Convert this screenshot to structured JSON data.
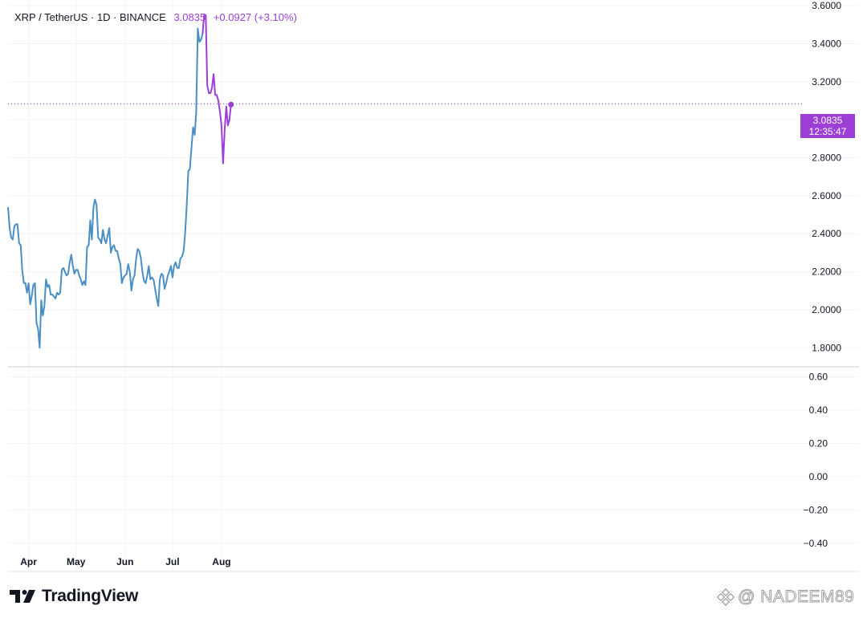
{
  "header": {
    "symbol": "XRP / TetherUS · 1D · BINANCE",
    "price": "3.0835",
    "change": "+0.0927 (+3.10%)"
  },
  "price_tag": {
    "price": "3.0835",
    "countdown": "12:35:47"
  },
  "logo": {
    "text": "TradingView",
    "icon": "tradingview-logo-icon"
  },
  "watermark": {
    "text": "@ NADEEM89",
    "icon": "binance-square-icon"
  },
  "colors": {
    "line_before": "#4a8fc4",
    "line_after": "#9c3fd6",
    "grid": "#f0f3fa",
    "axis_text": "#131722"
  },
  "chart_data": [
    {
      "type": "line",
      "title": "XRP / TetherUS · 1D · BINANCE",
      "xlabel": "",
      "ylabel": "",
      "x_tick_labels": [
        "Apr",
        "May",
        "Jun",
        "Jul",
        "Aug"
      ],
      "y_tick_labels": [
        "1.8000",
        "2.0000",
        "2.2000",
        "2.4000",
        "2.6000",
        "2.8000",
        "3.0000",
        "3.2000",
        "3.4000",
        "3.6000"
      ],
      "ylim": [
        1.7,
        3.63
      ],
      "grid": true,
      "last_price": 3.0835,
      "date_range": [
        "2025-03-19",
        "2025-08-07"
      ],
      "color_change_date": "2025-07-20",
      "series": [
        {
          "values": [
            2.54,
            2.43,
            2.38,
            2.37,
            2.44,
            2.45,
            2.45,
            2.35,
            2.34,
            2.21,
            2.14,
            2.14,
            2.09,
            2.14,
            2.03,
            2.07,
            2.13,
            2.14,
            1.93,
            1.9,
            1.8,
            2.05,
            1.97,
            2.02,
            2.16,
            2.12,
            2.13,
            2.08,
            2.08,
            2.07,
            2.06,
            2.09,
            2.08,
            2.09,
            2.21,
            2.22,
            2.2,
            2.18,
            2.19,
            2.25,
            2.29,
            2.23,
            2.19,
            2.21,
            2.21,
            2.18,
            2.16,
            2.13,
            2.15,
            2.13,
            2.33,
            2.34,
            2.47,
            2.37,
            2.54,
            2.58,
            2.55,
            2.38,
            2.37,
            2.35,
            2.42,
            2.37,
            2.35,
            2.39,
            2.43,
            2.3,
            2.33,
            2.34,
            2.31,
            2.31,
            2.27,
            2.24,
            2.14,
            2.17,
            2.18,
            2.19,
            2.24,
            2.2,
            2.1,
            2.16,
            2.18,
            2.27,
            2.32,
            2.31,
            2.27,
            2.2,
            2.15,
            2.14,
            2.18,
            2.23,
            2.16,
            2.17,
            2.16,
            2.11,
            2.06,
            2.02,
            2.16,
            2.19,
            2.18,
            2.11,
            2.14,
            2.18,
            2.2,
            2.23,
            2.17,
            2.23,
            2.25,
            2.22,
            2.22,
            2.27,
            2.28,
            2.31,
            2.4,
            2.55,
            2.73,
            2.74,
            2.85,
            2.96,
            2.92,
            3.04,
            3.48,
            3.41,
            3.42,
            3.45,
            3.55,
            3.55,
            3.18,
            3.14,
            3.14,
            3.17,
            3.24,
            3.13,
            3.13,
            3.1,
            3.04,
            2.97,
            2.77,
            2.95,
            3.07,
            2.97,
            3.0,
            3.08
          ]
        }
      ]
    },
    {
      "type": "line",
      "title": "",
      "y_tick_labels": [
        "0.60",
        "0.40",
        "0.20",
        "0.00",
        "−0.20",
        "−0.40"
      ],
      "ylim": [
        -0.57,
        0.66
      ],
      "grid": true,
      "series": []
    }
  ]
}
